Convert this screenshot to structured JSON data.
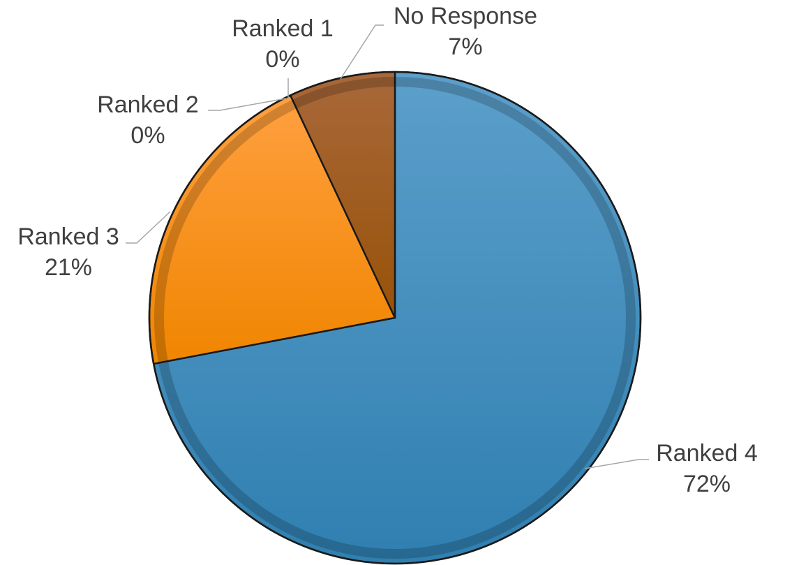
{
  "chart_data": {
    "type": "pie",
    "title": "",
    "slices": [
      {
        "label": "Ranked 4",
        "value": 72,
        "value_label": "72%",
        "color": "#3a8cc0"
      },
      {
        "label": "Ranked 3",
        "value": 21,
        "value_label": "21%",
        "color": "#f28a0c"
      },
      {
        "label": "Ranked 2",
        "value": 0,
        "value_label": "0%",
        "color": "#d46f00"
      },
      {
        "label": "Ranked 1",
        "value": 0,
        "value_label": "0%",
        "color": "#b25e00"
      },
      {
        "label": "No Response",
        "value": 7,
        "value_label": "7%",
        "color": "#8f5418"
      }
    ],
    "legend": "none",
    "label_position": "outside-with-leader-lines",
    "style": "3d-bevel"
  }
}
